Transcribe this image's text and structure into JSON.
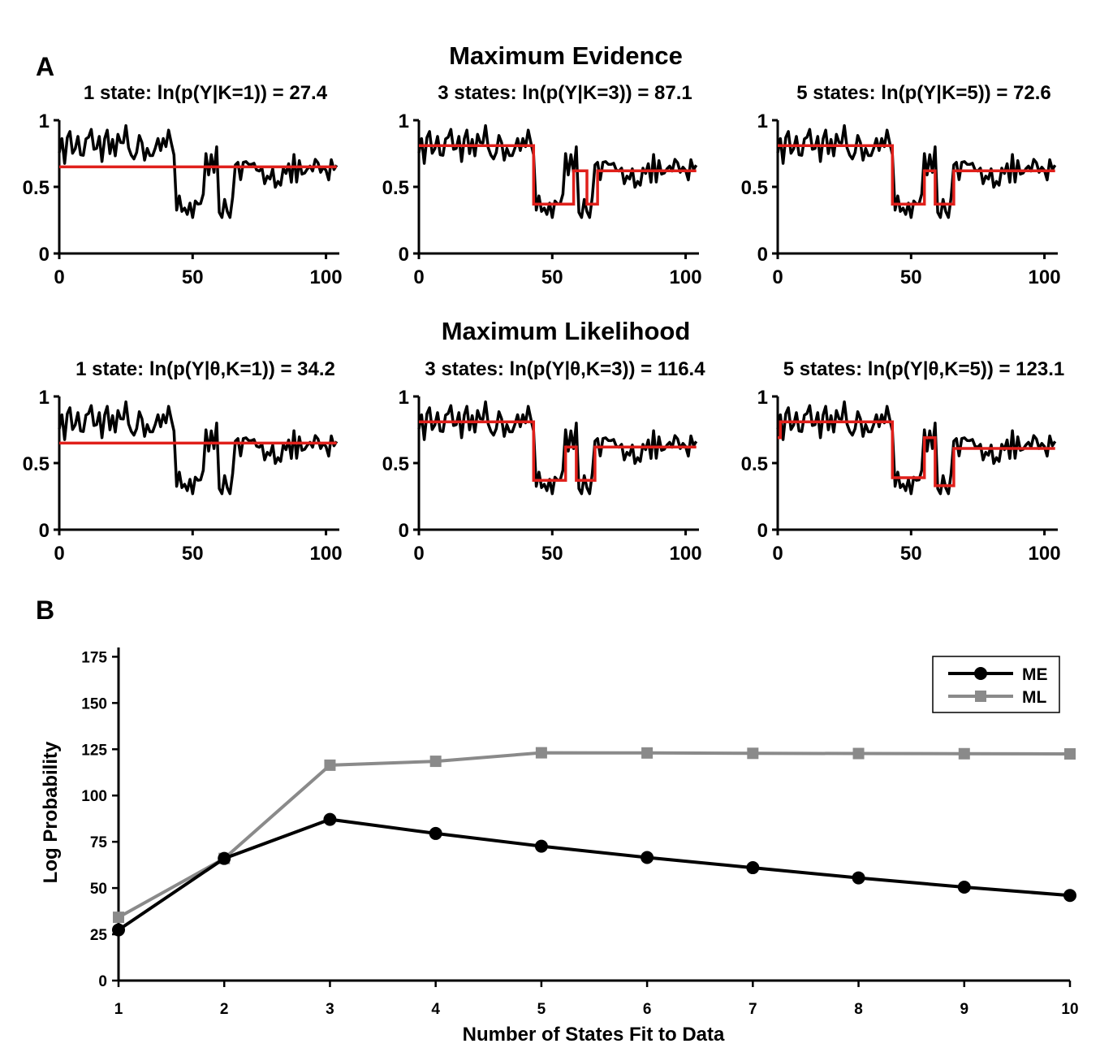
{
  "panel_a_label": "A",
  "panel_b_label": "B",
  "section_titles": [
    "Maximum Evidence",
    "Maximum Likelihood"
  ],
  "colors": {
    "data_trace": "#000000",
    "fit": "#e0201b",
    "me": "#000000",
    "ml": "#8a8a8a"
  },
  "chart_data": [
    {
      "type": "line",
      "panel": "A",
      "row": "Maximum Evidence",
      "title": "1 state: ln(p(Y|K=1)) = 27.4",
      "xticks": [
        "0",
        "50",
        "100"
      ],
      "yticks": [
        "0",
        "0.5",
        "1"
      ],
      "xlim": [
        0,
        105
      ],
      "ylim": [
        0,
        1
      ],
      "fit_segments": [
        {
          "x0": 0,
          "x1": 104,
          "y": 0.65
        }
      ]
    },
    {
      "type": "line",
      "panel": "A",
      "row": "Maximum Evidence",
      "title": "3 states: ln(p(Y|K=3)) = 87.1",
      "xticks": [
        "0",
        "50",
        "100"
      ],
      "yticks": [
        "0",
        "0.5",
        "1"
      ],
      "xlim": [
        0,
        105
      ],
      "ylim": [
        0,
        1
      ],
      "fit_segments": [
        {
          "x0": 0,
          "x1": 43,
          "y": 0.81
        },
        {
          "x0": 43,
          "x1": 58,
          "y": 0.37
        },
        {
          "x0": 58,
          "x1": 63,
          "y": 0.62
        },
        {
          "x0": 63,
          "x1": 67,
          "y": 0.37
        },
        {
          "x0": 67,
          "x1": 104,
          "y": 0.62
        }
      ]
    },
    {
      "type": "line",
      "panel": "A",
      "row": "Maximum Evidence",
      "title": "5 states: ln(p(Y|K=5)) = 72.6",
      "xticks": [
        "0",
        "50",
        "100"
      ],
      "yticks": [
        "0",
        "0.5",
        "1"
      ],
      "xlim": [
        0,
        105
      ],
      "ylim": [
        0,
        1
      ],
      "fit_segments": [
        {
          "x0": 0,
          "x1": 43,
          "y": 0.81
        },
        {
          "x0": 43,
          "x1": 55,
          "y": 0.37
        },
        {
          "x0": 55,
          "x1": 59,
          "y": 0.62
        },
        {
          "x0": 59,
          "x1": 66,
          "y": 0.37
        },
        {
          "x0": 66,
          "x1": 104,
          "y": 0.62
        }
      ]
    },
    {
      "type": "line",
      "panel": "A",
      "row": "Maximum Likelihood",
      "title": "1 state: ln(p(Y|θ,K=1)) = 34.2",
      "xticks": [
        "0",
        "50",
        "100"
      ],
      "yticks": [
        "0",
        "0.5",
        "1"
      ],
      "xlim": [
        0,
        105
      ],
      "ylim": [
        0,
        1
      ],
      "fit_segments": [
        {
          "x0": 0,
          "x1": 104,
          "y": 0.65
        }
      ]
    },
    {
      "type": "line",
      "panel": "A",
      "row": "Maximum Likelihood",
      "title": "3 states: ln(p(Y|θ,K=3)) = 116.4",
      "xticks": [
        "0",
        "50",
        "100"
      ],
      "yticks": [
        "0",
        "0.5",
        "1"
      ],
      "xlim": [
        0,
        105
      ],
      "ylim": [
        0,
        1
      ],
      "fit_segments": [
        {
          "x0": 0,
          "x1": 43,
          "y": 0.81
        },
        {
          "x0": 43,
          "x1": 55,
          "y": 0.37
        },
        {
          "x0": 55,
          "x1": 59,
          "y": 0.62
        },
        {
          "x0": 59,
          "x1": 66,
          "y": 0.37
        },
        {
          "x0": 66,
          "x1": 104,
          "y": 0.62
        }
      ]
    },
    {
      "type": "line",
      "panel": "A",
      "row": "Maximum Likelihood",
      "title": "5 states: ln(p(Y|θ,K=5)) = 123.1",
      "xticks": [
        "0",
        "50",
        "100"
      ],
      "yticks": [
        "0",
        "0.5",
        "1"
      ],
      "xlim": [
        0,
        105
      ],
      "ylim": [
        0,
        1
      ],
      "fit_segments": [
        {
          "x0": 0,
          "x1": 1,
          "y": 0.69
        },
        {
          "x0": 1,
          "x1": 43,
          "y": 0.81
        },
        {
          "x0": 43,
          "x1": 55,
          "y": 0.39
        },
        {
          "x0": 55,
          "x1": 59,
          "y": 0.69
        },
        {
          "x0": 59,
          "x1": 66,
          "y": 0.33
        },
        {
          "x0": 66,
          "x1": 104,
          "y": 0.61
        }
      ]
    },
    {
      "type": "line",
      "panel": "B",
      "xlabel": "Number of States Fit to Data",
      "ylabel": "Log Probability",
      "x": [
        1,
        2,
        3,
        4,
        5,
        6,
        7,
        8,
        9,
        10
      ],
      "xlim": [
        1,
        10
      ],
      "ylim": [
        0,
        180
      ],
      "yticks": [
        0,
        25,
        50,
        75,
        100,
        125,
        150,
        175
      ],
      "legend": "top-right",
      "series": [
        {
          "name": "ME",
          "marker": "circle",
          "color": "#000000",
          "values": [
            27.4,
            66,
            87.1,
            79.5,
            72.6,
            66.5,
            61,
            55.5,
            50.5,
            46
          ]
        },
        {
          "name": "ML",
          "marker": "square",
          "color": "#8a8a8a",
          "values": [
            34.2,
            66,
            116.4,
            118.5,
            123.1,
            123,
            122.8,
            122.7,
            122.6,
            122.5
          ]
        }
      ]
    }
  ]
}
